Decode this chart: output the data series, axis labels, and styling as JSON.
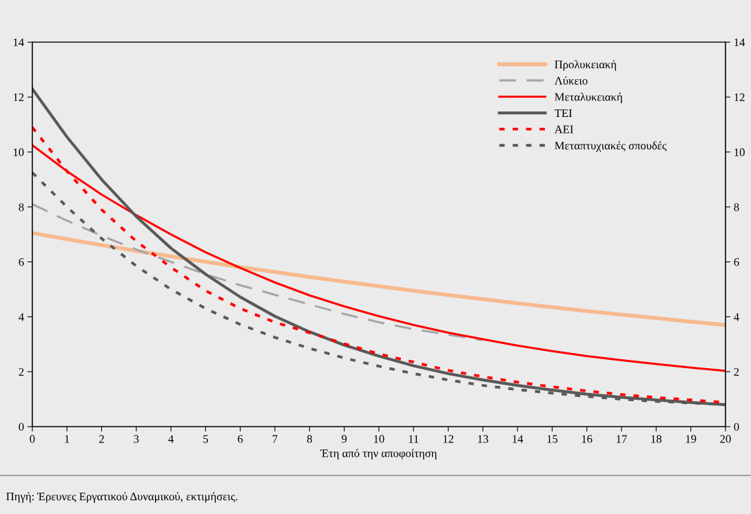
{
  "chart_data": {
    "type": "line",
    "xlabel": "Έτη από την αποφοίτηση",
    "x": [
      0,
      1,
      2,
      3,
      4,
      5,
      6,
      7,
      8,
      9,
      10,
      11,
      12,
      13,
      14,
      15,
      16,
      17,
      18,
      19,
      20
    ],
    "xlim": [
      0,
      20
    ],
    "xticks": [
      0,
      1,
      2,
      3,
      4,
      5,
      6,
      7,
      8,
      9,
      10,
      11,
      12,
      13,
      14,
      15,
      16,
      17,
      18,
      19,
      20
    ],
    "ylim": [
      0,
      14
    ],
    "yticks": [
      0,
      2,
      4,
      6,
      8,
      10,
      12,
      14
    ],
    "y2lim": [
      0,
      14
    ],
    "y2ticks": [
      0,
      2,
      4,
      6,
      8,
      10,
      12,
      14
    ],
    "grid": false,
    "legend": "top right",
    "series": [
      {
        "name": "Προλυκειακή",
        "color": "#f7b98e",
        "line_style": "solid",
        "values": [
          7.05,
          6.83,
          6.61,
          6.4,
          6.2,
          6.0,
          5.81,
          5.63,
          5.45,
          5.28,
          5.11,
          4.95,
          4.79,
          4.64,
          4.49,
          4.35,
          4.21,
          4.08,
          3.95,
          3.82,
          3.7
        ]
      },
      {
        "name": "Λύκειο",
        "color": "#a6a6a6",
        "line_style": "dashed",
        "values": [
          8.1,
          7.5,
          6.95,
          6.45,
          6.0,
          5.55,
          5.15,
          4.8,
          4.45,
          4.1,
          3.8,
          3.55,
          3.35,
          3.15,
          null,
          null,
          null,
          null,
          null,
          null,
          null
        ]
      },
      {
        "name": "Μεταλυκειακή",
        "color": "#ff0000",
        "line_style": "solid",
        "values": [
          10.25,
          9.3,
          8.45,
          7.7,
          7.0,
          6.35,
          5.78,
          5.25,
          4.78,
          4.38,
          4.02,
          3.7,
          3.42,
          3.18,
          2.95,
          2.75,
          2.57,
          2.42,
          2.28,
          2.15,
          2.03
        ]
      },
      {
        "name": "ΤΕΙ",
        "color": "#595959",
        "line_style": "solid",
        "values": [
          12.3,
          10.55,
          9.0,
          7.65,
          6.5,
          5.55,
          4.72,
          4.02,
          3.45,
          2.97,
          2.57,
          2.22,
          1.93,
          1.7,
          1.5,
          1.33,
          1.18,
          1.07,
          0.97,
          0.88,
          0.8
        ]
      },
      {
        "name": "ΑΕΙ",
        "color": "#ff0000",
        "line_style": "dotted",
        "values": [
          10.9,
          9.3,
          7.9,
          6.75,
          5.8,
          4.95,
          4.3,
          3.8,
          3.42,
          3.02,
          2.65,
          2.35,
          2.05,
          1.82,
          1.62,
          1.45,
          1.3,
          1.17,
          1.06,
          0.97,
          0.88
        ]
      },
      {
        "name": "Μεταπτυχιακές σπουδές",
        "color": "#595959",
        "line_style": "dotted",
        "values": [
          9.25,
          8.0,
          6.85,
          5.85,
          5.0,
          4.3,
          3.72,
          3.25,
          2.85,
          2.5,
          2.2,
          1.93,
          1.7,
          1.5,
          1.35,
          1.22,
          1.1,
          1.0,
          0.92,
          0.86,
          0.8
        ]
      }
    ],
    "annotations": [
      "Πηγή: Έρευνες Εργατικού Δυναμικού, εκτιμήσεις."
    ]
  }
}
